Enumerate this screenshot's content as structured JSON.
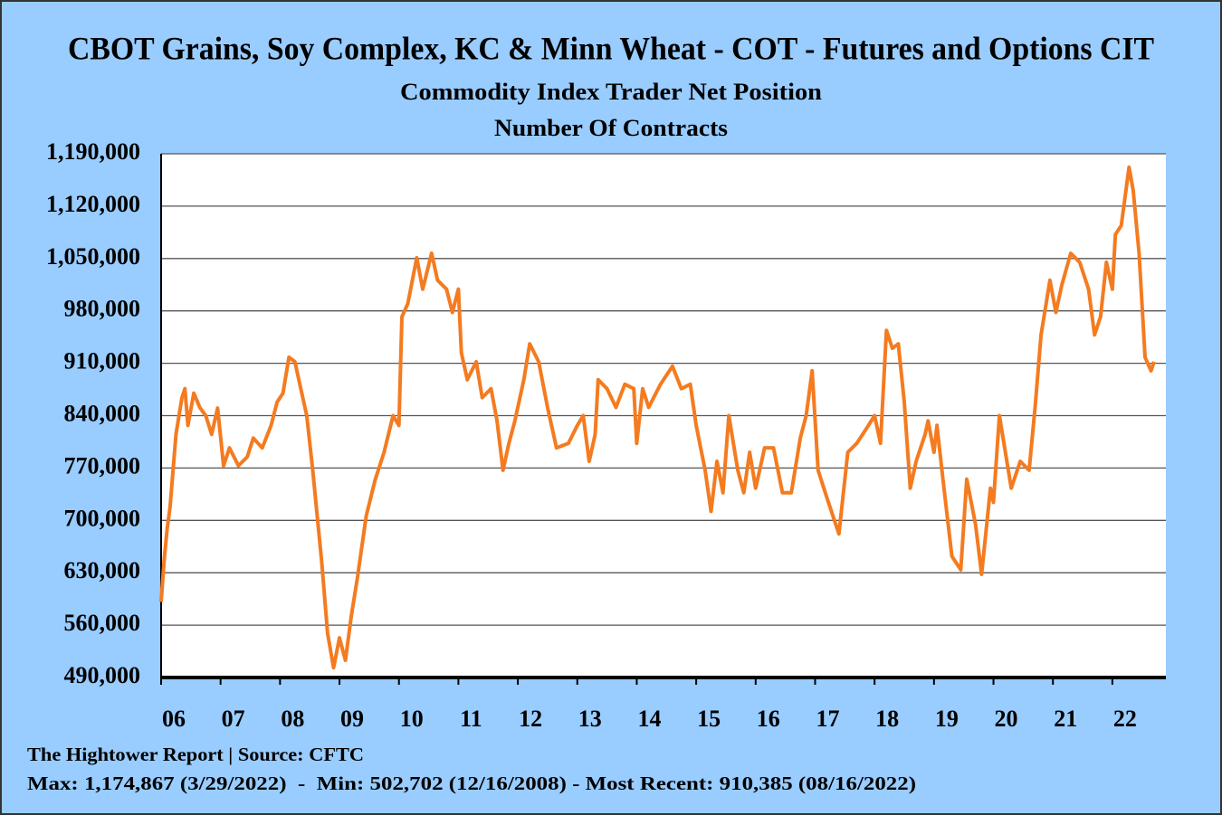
{
  "chart_data": {
    "type": "line",
    "title": "CBOT Grains, Soy Complex, KC & Minn Wheat - COT - Futures and Options CIT",
    "subtitle": "Commodity Index Trader Net Position",
    "y_axis_label": "Number Of Contracts",
    "source": "The Hightower Report | Source: CFTC",
    "note": "Max: 1,174,867 (3/29/2022)  -  Min: 502,702 (12/16/2008) - Most Recent: 910,385 (08/16/2022)",
    "xlim": [
      6,
      22.9
    ],
    "xticks": [
      {
        "value": 6,
        "label": "06"
      },
      {
        "value": 7,
        "label": "07"
      },
      {
        "value": 8,
        "label": "08"
      },
      {
        "value": 9,
        "label": "09"
      },
      10,
      11,
      12,
      13,
      14,
      15,
      16,
      17,
      18,
      19,
      20,
      21,
      22
    ],
    "ylim": [
      490000,
      1190000
    ],
    "yticks": [
      {
        "value": 490000,
        "label": "490,000"
      },
      {
        "value": 560000,
        "label": "560,000"
      },
      {
        "value": 630000,
        "label": "630,000"
      },
      {
        "value": 700000,
        "label": "700,000"
      },
      {
        "value": 770000,
        "label": "770,000"
      },
      {
        "value": 840000,
        "label": "840,000"
      },
      {
        "value": 910000,
        "label": "910,000"
      },
      {
        "value": 980000,
        "label": "980,000"
      },
      {
        "value": 1050000,
        "label": "1,050,000"
      },
      {
        "value": 1120000,
        "label": "1,120,000"
      },
      {
        "value": 1190000,
        "label": "1,190,000"
      }
    ],
    "grid": true,
    "series": [
      {
        "color": "#f47b20",
        "x": [
          6.0,
          6.05,
          6.1,
          6.15,
          6.25,
          6.35,
          6.4,
          6.45,
          6.55,
          6.65,
          6.75,
          6.85,
          6.95,
          7.05,
          7.15,
          7.3,
          7.45,
          7.55,
          7.7,
          7.85,
          7.95,
          8.05,
          8.15,
          8.25,
          8.35,
          8.45,
          8.55,
          8.7,
          8.8,
          8.9,
          9.0,
          9.1,
          9.2,
          9.3,
          9.45,
          9.6,
          9.75,
          9.9,
          10.0,
          10.05,
          10.15,
          10.3,
          10.4,
          10.55,
          10.65,
          10.8,
          10.9,
          11.0,
          11.05,
          11.15,
          11.3,
          11.4,
          11.55,
          11.65,
          11.75,
          11.85,
          11.95,
          12.1,
          12.2,
          12.35,
          12.5,
          12.65,
          12.85,
          13.0,
          13.1,
          13.2,
          13.3,
          13.35,
          13.5,
          13.65,
          13.8,
          13.95,
          14.0,
          14.1,
          14.2,
          14.4,
          14.6,
          14.75,
          14.9,
          15.0,
          15.15,
          15.25,
          15.35,
          15.45,
          15.55,
          15.7,
          15.8,
          15.9,
          16.0,
          16.15,
          16.3,
          16.45,
          16.6,
          16.75,
          16.85,
          16.95,
          17.05,
          17.2,
          17.4,
          17.55,
          17.7,
          17.85,
          18.0,
          18.1,
          18.2,
          18.3,
          18.4,
          18.5,
          18.6,
          18.7,
          18.85,
          18.9,
          19.0,
          19.05,
          19.15,
          19.3,
          19.45,
          19.55,
          19.7,
          19.8,
          19.95,
          20.0,
          20.1,
          20.2,
          20.3,
          20.45,
          20.6,
          20.7,
          20.8,
          20.95,
          21.05,
          21.15,
          21.3,
          21.45,
          21.6,
          21.7,
          21.8,
          21.9,
          22.0,
          22.05,
          22.15,
          22.2,
          22.28,
          22.35,
          22.45,
          22.55,
          22.65,
          22.7
        ],
        "values": [
          591000,
          646000,
          688000,
          718000,
          815000,
          864000,
          876000,
          827000,
          870000,
          851000,
          840000,
          815000,
          850000,
          773000,
          797000,
          773000,
          785000,
          810000,
          797000,
          827000,
          858000,
          870000,
          918000,
          912000,
          876000,
          840000,
          767000,
          646000,
          549000,
          503000,
          543000,
          513000,
          573000,
          622000,
          706000,
          754000,
          791000,
          840000,
          827000,
          972000,
          990000,
          1051000,
          1009000,
          1057000,
          1021000,
          1009000,
          978000,
          1009000,
          924000,
          888000,
          912000,
          864000,
          876000,
          833000,
          767000,
          803000,
          833000,
          888000,
          936000,
          912000,
          851000,
          797000,
          803000,
          827000,
          840000,
          779000,
          815000,
          888000,
          876000,
          851000,
          882000,
          876000,
          803000,
          876000,
          851000,
          882000,
          906000,
          876000,
          882000,
          827000,
          767000,
          712000,
          779000,
          737000,
          840000,
          767000,
          737000,
          791000,
          743000,
          797000,
          797000,
          737000,
          737000,
          810000,
          840000,
          900000,
          767000,
          730000,
          682000,
          791000,
          803000,
          821000,
          840000,
          803000,
          954000,
          930000,
          936000,
          858000,
          743000,
          779000,
          815000,
          833000,
          791000,
          827000,
          755000,
          652000,
          634000,
          755000,
          694000,
          628000,
          743000,
          724000,
          840000,
          791000,
          743000,
          779000,
          767000,
          851000,
          948000,
          1021000,
          978000,
          1015000,
          1057000,
          1045000,
          1009000,
          948000,
          972000,
          1045000,
          1009000,
          1082000,
          1094000,
          1124000,
          1172000,
          1141000,
          1057000,
          918000,
          900000,
          912000
        ]
      }
    ]
  }
}
